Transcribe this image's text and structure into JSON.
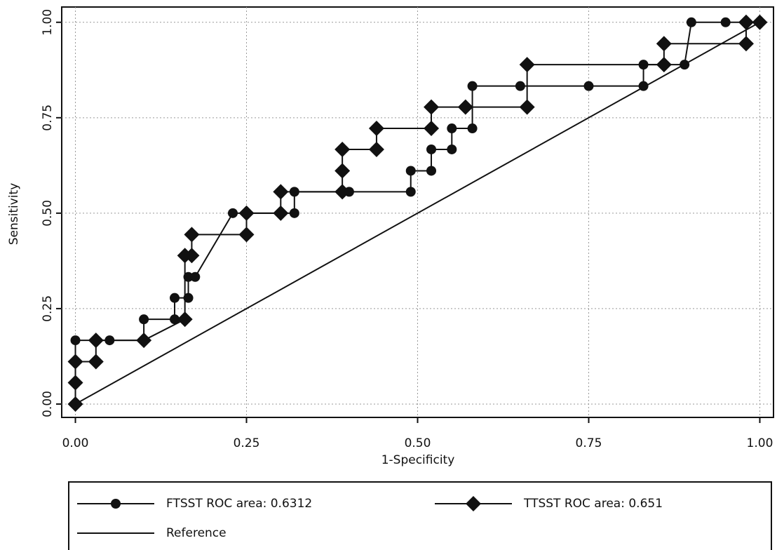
{
  "chart_data": {
    "type": "roc",
    "x_label": "1-Specificity",
    "y_label": "Sensitivity",
    "xlim": [
      -0.02,
      1.02
    ],
    "ylim": [
      -0.035,
      1.04
    ],
    "xticks": [
      {
        "value": 0,
        "label": "0.00"
      },
      0.25,
      {
        "value": 0.5,
        "label": "0.50"
      },
      0.75,
      {
        "value": 1,
        "label": "1.00"
      }
    ],
    "yticks": [
      {
        "value": 0,
        "label": "0.00"
      },
      0.25,
      {
        "value": 0.5,
        "label": "0.50"
      },
      0.75,
      {
        "value": 1,
        "label": "1.00"
      }
    ],
    "grid": true,
    "legend": "bottom",
    "series": [
      {
        "name": "FTSST ROC area: 0.6312",
        "marker": "circle",
        "color": "#111111",
        "x": [
          0,
          0,
          0.05,
          0.1,
          0.1,
          0.145,
          0.145,
          0.165,
          0.165,
          0.175,
          0.23,
          0.3,
          0.32,
          0.32,
          0.4,
          0.49,
          0.49,
          0.52,
          0.52,
          0.55,
          0.55,
          0.58,
          0.58,
          0.65,
          0.75,
          0.83,
          0.83,
          0.89,
          0.9,
          0.95,
          1
        ],
        "values": [
          0,
          0.167,
          0.167,
          0.167,
          0.222,
          0.222,
          0.278,
          0.278,
          0.333,
          0.333,
          0.5,
          0.5,
          0.5,
          0.556,
          0.556,
          0.556,
          0.611,
          0.611,
          0.667,
          0.667,
          0.722,
          0.722,
          0.833,
          0.833,
          0.833,
          0.833,
          0.889,
          0.889,
          1,
          1,
          1
        ]
      },
      {
        "name": "TTSST  ROC area: 0.651",
        "marker": "diamond",
        "color": "#111111",
        "x": [
          0,
          0,
          0,
          0.03,
          0.03,
          0.1,
          0.16,
          0.16,
          0.17,
          0.17,
          0.25,
          0.25,
          0.3,
          0.3,
          0.39,
          0.39,
          0.39,
          0.44,
          0.44,
          0.52,
          0.52,
          0.57,
          0.66,
          0.66,
          0.86,
          0.86,
          0.98,
          0.98,
          1
        ],
        "values": [
          0,
          0.056,
          0.111,
          0.111,
          0.167,
          0.167,
          0.222,
          0.389,
          0.389,
          0.444,
          0.444,
          0.5,
          0.5,
          0.556,
          0.556,
          0.611,
          0.667,
          0.667,
          0.722,
          0.722,
          0.778,
          0.778,
          0.778,
          0.889,
          0.889,
          0.944,
          0.944,
          1,
          1
        ]
      },
      {
        "name": "Reference",
        "marker": "none",
        "color": "#111111",
        "x": [
          0,
          1
        ],
        "values": [
          0,
          1
        ]
      }
    ]
  }
}
